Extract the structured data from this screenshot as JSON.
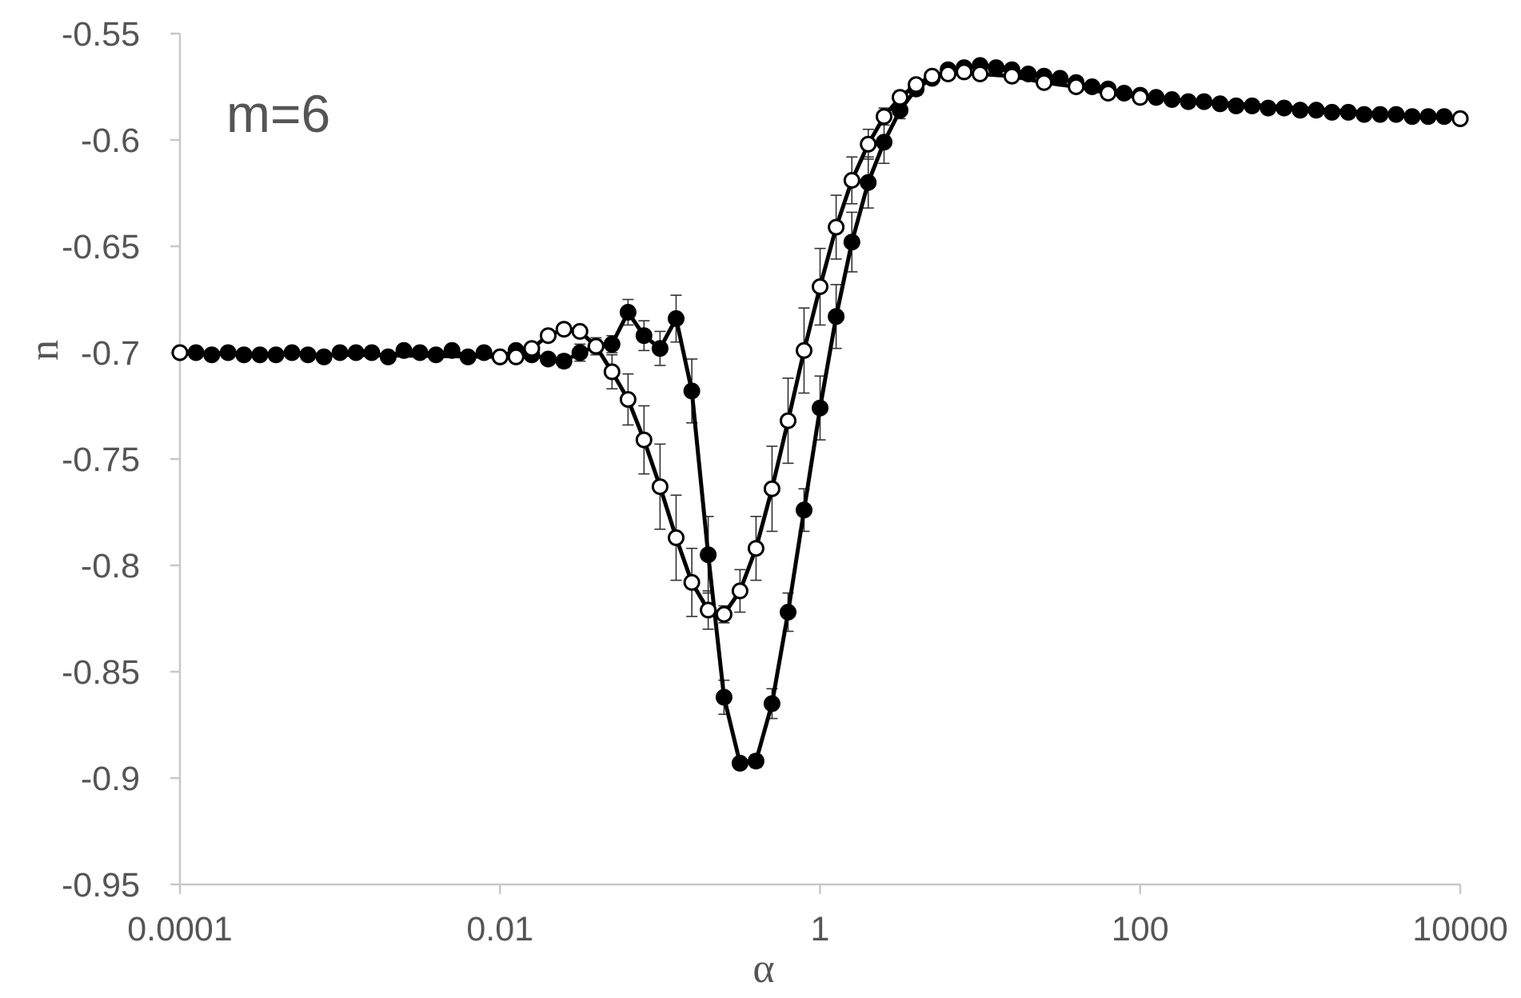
{
  "chart_data": {
    "type": "line",
    "title": "",
    "annotation": "m=6",
    "xlabel": "α",
    "ylabel": "n",
    "x_scale": "log",
    "xlim": [
      0.0001,
      10000
    ],
    "ylim": [
      -0.95,
      -0.55
    ],
    "x_ticks": [
      0.0001,
      0.01,
      1,
      100,
      10000
    ],
    "x_tick_labels": [
      "0.0001",
      "0.01",
      "1",
      "100",
      "10000"
    ],
    "y_ticks": [
      -0.55,
      -0.6,
      -0.65,
      -0.7,
      -0.75,
      -0.8,
      -0.85,
      -0.9,
      -0.95
    ],
    "y_tick_labels": [
      "-0.55",
      "-0.6",
      "-0.65",
      "-0.7",
      "-0.75",
      "-0.8",
      "-0.85",
      "-0.9",
      "-0.95"
    ],
    "grid": false,
    "legend": "none",
    "colors": {
      "line": "#000000",
      "axis": "#c8c8c8",
      "text": "#555555",
      "errorbar": "#333333"
    },
    "series": [
      {
        "marker": "filled-circle",
        "x": [
          0.0001,
          0.000126,
          0.000158,
          0.0002,
          0.000251,
          0.000316,
          0.000398,
          0.000501,
          0.000631,
          0.000794,
          0.001,
          0.00126,
          0.00158,
          0.002,
          0.00251,
          0.00316,
          0.00398,
          0.00501,
          0.00631,
          0.00794,
          0.01,
          0.0126,
          0.0158,
          0.02,
          0.0251,
          0.0316,
          0.0398,
          0.0501,
          0.0631,
          0.0794,
          0.1,
          0.126,
          0.158,
          0.2,
          0.251,
          0.316,
          0.398,
          0.501,
          0.631,
          0.794,
          1,
          1.26,
          1.58,
          2,
          2.51,
          3.16,
          3.98,
          5.01,
          6.31,
          7.94,
          10,
          12.6,
          15.8,
          20,
          25.1,
          31.6,
          39.8,
          50.1,
          63.1,
          79.4,
          100,
          126,
          158,
          200,
          251,
          316,
          398,
          501,
          631,
          794,
          1000,
          1260,
          1580,
          2000,
          2510,
          3160,
          3980,
          5010,
          6310,
          7940,
          10000
        ],
        "y": [
          -0.7,
          -0.7,
          -0.701,
          -0.7,
          -0.701,
          -0.701,
          -0.701,
          -0.7,
          -0.701,
          -0.702,
          -0.7,
          -0.7,
          -0.7,
          -0.702,
          -0.699,
          -0.7,
          -0.701,
          -0.699,
          -0.702,
          -0.7,
          -0.702,
          -0.699,
          -0.701,
          -0.703,
          -0.704,
          -0.7,
          -0.697,
          -0.696,
          -0.681,
          -0.692,
          -0.698,
          -0.684,
          -0.718,
          -0.795,
          -0.862,
          -0.893,
          -0.892,
          -0.865,
          -0.822,
          -0.774,
          -0.726,
          -0.683,
          -0.648,
          -0.62,
          -0.601,
          -0.586,
          -0.576,
          -0.571,
          -0.567,
          -0.566,
          -0.565,
          -0.566,
          -0.567,
          -0.569,
          -0.57,
          -0.571,
          -0.573,
          -0.575,
          -0.576,
          -0.578,
          -0.579,
          -0.58,
          -0.581,
          -0.582,
          -0.582,
          -0.583,
          -0.584,
          -0.584,
          -0.585,
          -0.585,
          -0.586,
          -0.586,
          -0.587,
          -0.587,
          -0.588,
          -0.588,
          -0.588,
          -0.589,
          -0.589,
          -0.589,
          -0.59
        ],
        "error": [
          0,
          0,
          0,
          0,
          0,
          0,
          0,
          0,
          0,
          0,
          0,
          0,
          0,
          0,
          0,
          0,
          0,
          0,
          0,
          0,
          0,
          0,
          0,
          0,
          0.003,
          0.004,
          0.003,
          0.004,
          0.006,
          0.007,
          0.008,
          0.011,
          0.015,
          0.018,
          0.008,
          0.002,
          0.003,
          0.007,
          0.009,
          0.01,
          0.015,
          0.015,
          0.014,
          0.012,
          0.01,
          0.004,
          0.003,
          0.002,
          0,
          0,
          0,
          0,
          0,
          0,
          0,
          0,
          0,
          0,
          0,
          0,
          0,
          0,
          0,
          0,
          0,
          0,
          0,
          0,
          0,
          0,
          0,
          0,
          0,
          0,
          0,
          0,
          0,
          0,
          0,
          0,
          0
        ]
      },
      {
        "marker": "open-circle",
        "x": [
          0.0001,
          0.01,
          0.0126,
          0.0158,
          0.02,
          0.0251,
          0.0316,
          0.0398,
          0.0501,
          0.0631,
          0.0794,
          0.1,
          0.126,
          0.158,
          0.2,
          0.251,
          0.316,
          0.398,
          0.501,
          0.631,
          0.794,
          1,
          1.26,
          1.58,
          2,
          2.51,
          3.16,
          3.98,
          5.01,
          6.31,
          7.94,
          10,
          15.8,
          25.1,
          39.8,
          63.1,
          100,
          10000
        ],
        "y": [
          -0.7,
          -0.702,
          -0.702,
          -0.698,
          -0.692,
          -0.689,
          -0.69,
          -0.697,
          -0.709,
          -0.722,
          -0.741,
          -0.763,
          -0.787,
          -0.808,
          -0.821,
          -0.823,
          -0.812,
          -0.792,
          -0.764,
          -0.732,
          -0.699,
          -0.669,
          -0.641,
          -0.619,
          -0.602,
          -0.589,
          -0.58,
          -0.574,
          -0.57,
          -0.569,
          -0.568,
          -0.569,
          -0.57,
          -0.573,
          -0.575,
          -0.578,
          -0.58,
          -0.59
        ],
        "error": [
          0,
          0,
          0,
          0,
          0,
          0,
          0,
          0.004,
          0.008,
          0.012,
          0.016,
          0.02,
          0.02,
          0.016,
          0.009,
          0.004,
          0.01,
          0.015,
          0.02,
          0.02,
          0.02,
          0.018,
          0.015,
          0.011,
          0.007,
          0.004,
          0.003,
          0,
          0,
          0,
          0,
          0,
          0,
          0,
          0,
          0,
          0,
          0
        ]
      }
    ]
  }
}
